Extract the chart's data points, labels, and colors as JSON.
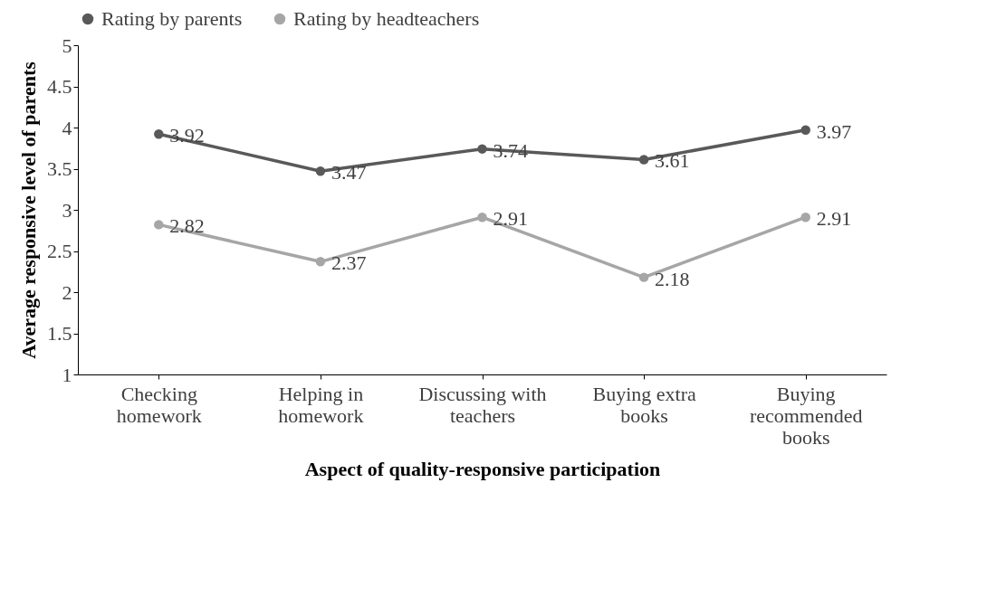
{
  "chart_data": {
    "type": "line",
    "xlabel": "Aspect of quality-responsive participation",
    "ylabel": "Average responsive level of parents",
    "categories": [
      "Checking homework",
      "Helping in homework",
      "Discussing with teachers",
      "Buying extra books",
      "Buying recommended books"
    ],
    "series": [
      {
        "name": "Rating by parents",
        "color": "#595959",
        "values": [
          3.92,
          3.47,
          3.74,
          3.61,
          3.97
        ]
      },
      {
        "name": "Rating by headteachers",
        "color": "#a6a6a6",
        "values": [
          2.82,
          2.37,
          2.91,
          2.18,
          2.91
        ]
      }
    ],
    "ylim": [
      1,
      5
    ],
    "yticks": [
      1,
      1.5,
      2,
      2.5,
      3,
      3.5,
      4,
      4.5,
      5
    ],
    "grid": false,
    "legend": "top",
    "marker": "circle",
    "line_style": "solid",
    "data_labels": true
  }
}
